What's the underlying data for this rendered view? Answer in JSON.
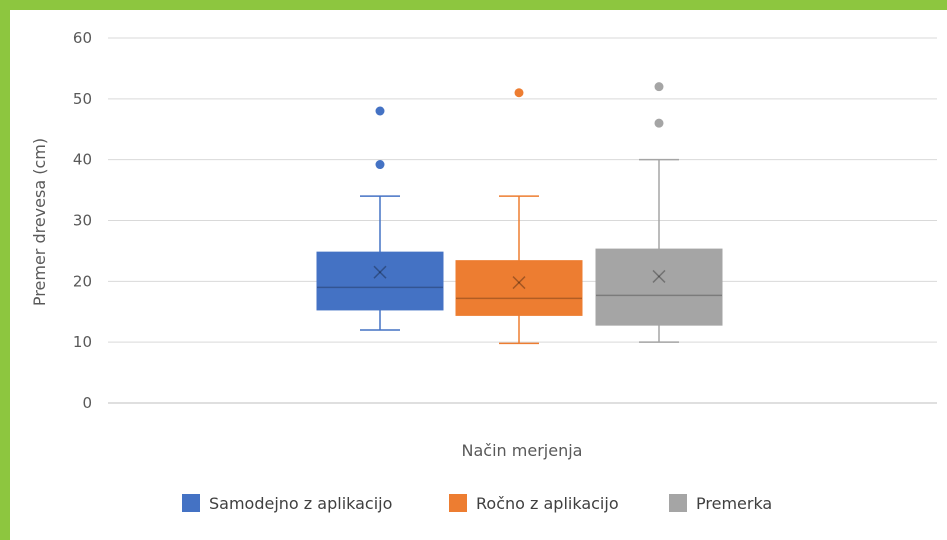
{
  "chart_data": {
    "type": "boxplot",
    "xlabel": "Način merjenja",
    "ylabel": "Premer drevesa (cm)",
    "ylim": [
      0,
      60
    ],
    "yticks": [
      0,
      10,
      20,
      30,
      40,
      50,
      60
    ],
    "grid": true,
    "legend_position": "bottom",
    "series": [
      {
        "name": "Samodejno z aplikacijo",
        "color": "#4472c4",
        "whisker_low": 12,
        "q1": 15.3,
        "median": 19,
        "q3": 24.8,
        "whisker_high": 34,
        "mean": 21.5,
        "outliers": [
          39.2,
          48
        ]
      },
      {
        "name": "Ročno z aplikacijo",
        "color": "#ed7d31",
        "whisker_low": 9.8,
        "q1": 14.4,
        "median": 17.2,
        "q3": 23.4,
        "whisker_high": 34,
        "mean": 19.8,
        "outliers": [
          51
        ]
      },
      {
        "name": "Premerka",
        "color": "#a5a5a5",
        "whisker_low": 10,
        "q1": 12.8,
        "median": 17.7,
        "q3": 25.3,
        "whisker_high": 40,
        "mean": 20.8,
        "outliers": [
          46,
          52
        ]
      }
    ]
  }
}
